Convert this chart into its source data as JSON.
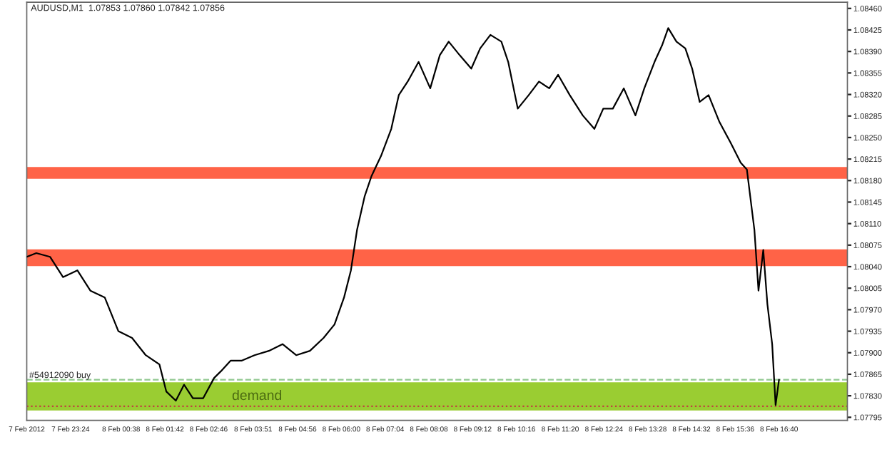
{
  "chart_data": {
    "type": "line",
    "title": "AUDUSD,M1  1.07853 1.07860 1.07842 1.07856",
    "x": [
      "2012-02-07T22:20",
      "2012-02-07T22:34",
      "2012-02-07T22:54",
      "2012-02-07T23:13",
      "2012-02-07T23:34",
      "2012-02-07T23:53",
      "2012-02-08T00:14",
      "2012-02-08T00:34",
      "2012-02-08T00:54",
      "2012-02-08T01:14",
      "2012-02-08T01:34",
      "2012-02-08T01:44",
      "2012-02-08T01:58",
      "2012-02-08T02:10",
      "2012-02-08T02:23",
      "2012-02-08T02:38",
      "2012-02-08T02:54",
      "2012-02-08T03:04",
      "2012-02-08T03:18",
      "2012-02-08T03:34",
      "2012-02-08T03:53",
      "2012-02-08T04:14",
      "2012-02-08T04:34",
      "2012-02-08T04:54",
      "2012-02-08T05:14",
      "2012-02-08T05:34",
      "2012-02-08T05:50",
      "2012-02-08T06:04",
      "2012-02-08T06:14",
      "2012-02-08T06:23",
      "2012-02-08T06:34",
      "2012-02-08T06:44",
      "2012-02-08T06:58",
      "2012-02-08T07:13",
      "2012-02-08T07:24",
      "2012-02-08T07:37",
      "2012-02-08T07:53",
      "2012-02-08T08:10",
      "2012-02-08T08:24",
      "2012-02-08T08:37",
      "2012-02-08T08:53",
      "2012-02-08T09:10",
      "2012-02-08T09:23",
      "2012-02-08T09:38",
      "2012-02-08T09:54",
      "2012-02-08T10:04",
      "2012-02-08T10:18",
      "2012-02-08T10:34",
      "2012-02-08T10:49",
      "2012-02-08T11:04",
      "2012-02-08T11:17",
      "2012-02-08T11:34",
      "2012-02-08T11:53",
      "2012-02-08T12:10",
      "2012-02-08T12:23",
      "2012-02-08T12:37",
      "2012-02-08T12:53",
      "2012-02-08T13:10",
      "2012-02-08T13:23",
      "2012-02-08T13:38",
      "2012-02-08T13:49",
      "2012-02-08T13:58",
      "2012-02-08T14:10",
      "2012-02-08T14:23",
      "2012-02-08T14:33",
      "2012-02-08T14:44",
      "2012-02-08T14:57",
      "2012-02-08T15:13",
      "2012-02-08T15:29",
      "2012-02-08T15:44",
      "2012-02-08T15:53",
      "2012-02-08T16:04",
      "2012-02-08T16:10",
      "2012-02-08T16:17",
      "2012-02-08T16:23",
      "2012-02-08T16:30",
      "2012-02-08T16:35",
      "2012-02-08T16:40"
    ],
    "series": [
      {
        "color": "#000000",
        "values": [
          1.08056,
          1.08062,
          1.08056,
          1.08023,
          1.08034,
          1.08001,
          1.0799,
          1.07935,
          1.07924,
          1.07896,
          1.07881,
          1.07837,
          1.07822,
          1.07848,
          1.07826,
          1.07826,
          1.07859,
          1.0787,
          1.07887,
          1.07887,
          1.07896,
          1.07903,
          1.07914,
          1.07896,
          1.07903,
          1.07924,
          1.07946,
          1.0799,
          1.08034,
          1.081,
          1.08154,
          1.08187,
          1.0822,
          1.08264,
          1.08319,
          1.08341,
          1.08373,
          1.0833,
          1.08384,
          1.08406,
          1.08384,
          1.08362,
          1.08395,
          1.08417,
          1.08406,
          1.08373,
          1.08297,
          1.08319,
          1.08341,
          1.0833,
          1.08352,
          1.08319,
          1.08286,
          1.08264,
          1.08297,
          1.08297,
          1.0833,
          1.08286,
          1.0833,
          1.08373,
          1.084,
          1.08428,
          1.08406,
          1.08395,
          1.08362,
          1.08308,
          1.08319,
          1.08275,
          1.08242,
          1.08209,
          1.08198,
          1.081,
          1.08001,
          1.08067,
          1.07979,
          1.07914,
          1.07815,
          1.07856
        ]
      }
    ],
    "xlim": [
      "2012-02-07T22:20",
      "2012-02-08T18:20"
    ],
    "xticks": [
      {
        "value": "2012-02-07T22:20",
        "label": "7 Feb 2012"
      },
      {
        "value": "2012-02-07T23:24",
        "label": "7 Feb 23:24"
      },
      {
        "value": "2012-02-08T00:38",
        "label": "8 Feb 00:38"
      },
      {
        "value": "2012-02-08T01:42",
        "label": "8 Feb 01:42"
      },
      {
        "value": "2012-02-08T02:46",
        "label": "8 Feb 02:46"
      },
      {
        "value": "2012-02-08T03:51",
        "label": "8 Feb 03:51"
      },
      {
        "value": "2012-02-08T04:56",
        "label": "8 Feb 04:56"
      },
      {
        "value": "2012-02-08T06:00",
        "label": "8 Feb 06:00"
      },
      {
        "value": "2012-02-08T07:04",
        "label": "8 Feb 07:04"
      },
      {
        "value": "2012-02-08T08:08",
        "label": "8 Feb 08:08"
      },
      {
        "value": "2012-02-08T09:12",
        "label": "8 Feb 09:12"
      },
      {
        "value": "2012-02-08T10:16",
        "label": "8 Feb 10:16"
      },
      {
        "value": "2012-02-08T11:20",
        "label": "8 Feb 11:20"
      },
      {
        "value": "2012-02-08T12:24",
        "label": "8 Feb 12:24"
      },
      {
        "value": "2012-02-08T13:28",
        "label": "8 Feb 13:28"
      },
      {
        "value": "2012-02-08T14:32",
        "label": "8 Feb 14:32"
      },
      {
        "value": "2012-02-08T15:36",
        "label": "8 Feb 15:36"
      },
      {
        "value": "2012-02-08T16:40",
        "label": "8 Feb 16:40"
      }
    ],
    "ylim": [
      1.0779,
      1.0847
    ],
    "yticks": [
      1.07795,
      {
        "value": 1.0783,
        "label": "1.07830"
      },
      1.07865,
      {
        "value": 1.079,
        "label": "1.07900"
      },
      1.07935,
      {
        "value": 1.0797,
        "label": "1.07970"
      },
      1.08005,
      {
        "value": 1.0804,
        "label": "1.08040"
      },
      1.08075,
      {
        "value": 1.0811,
        "label": "1.08110"
      },
      1.08145,
      {
        "value": 1.0818,
        "label": "1.08180"
      },
      1.08215,
      {
        "value": 1.0825,
        "label": "1.08250"
      },
      1.08285,
      {
        "value": 1.0832,
        "label": "1.08320"
      },
      1.08355,
      {
        "value": 1.0839,
        "label": "1.08390"
      },
      1.08425,
      {
        "value": 1.0846,
        "label": "1.08460"
      }
    ],
    "bands": [
      {
        "axis": "y",
        "from": 1.07806,
        "to": 1.07852,
        "label": "demand",
        "color": "#9acd32"
      },
      {
        "axis": "y",
        "from": 1.08183,
        "to": 1.08202,
        "color": "#ff6347"
      },
      {
        "axis": "y",
        "from": 1.08041,
        "to": 1.08068,
        "color": "#ff6347"
      }
    ],
    "ref_lines": [
      {
        "axis": "y",
        "value": 1.07856,
        "label": "#54912090 buy",
        "color": "#90c890",
        "line_style": "dashed"
      },
      {
        "axis": "y",
        "value": 1.07813,
        "color": "#c04040",
        "line_style": "dotted"
      }
    ],
    "grid": false,
    "legend": false,
    "line_style": "solid",
    "marker": "none"
  }
}
